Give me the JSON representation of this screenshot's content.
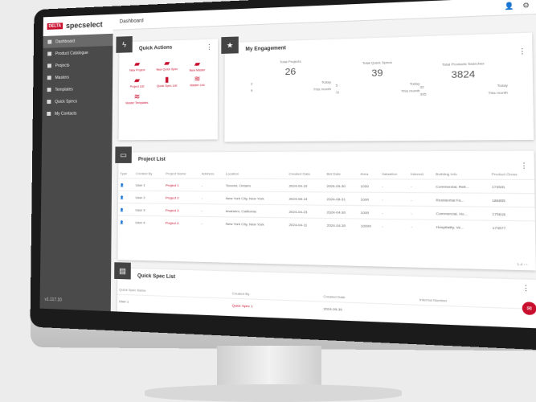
{
  "brand": {
    "badge": "DELTA",
    "name": "specselect"
  },
  "sidebar": {
    "items": [
      {
        "label": "Dashboard"
      },
      {
        "label": "Product Catalogue"
      },
      {
        "label": "Projects"
      },
      {
        "label": "Masters"
      },
      {
        "label": "Templates"
      },
      {
        "label": "Quick Specs"
      },
      {
        "label": "My Contacts"
      }
    ],
    "version": "v1.117.10"
  },
  "header": {
    "title": "Dashboard"
  },
  "quick_actions": {
    "title": "Quick Actions",
    "items": [
      {
        "label": "New Project"
      },
      {
        "label": "New Quick Spec"
      },
      {
        "label": "New Master"
      },
      {
        "label": "Project List"
      },
      {
        "label": "Quick Spec List"
      },
      {
        "label": "Master List"
      },
      {
        "label": "Master Templates"
      }
    ]
  },
  "engagement": {
    "title": "My Engagement",
    "stats": [
      {
        "label": "Total Projects",
        "value": "26",
        "today": "2",
        "today_label": "Today",
        "week": "9",
        "week_label": "This month"
      },
      {
        "label": "Total Quick Specs",
        "value": "39",
        "today": "5",
        "today_label": "Today",
        "week": "11",
        "week_label": "This month"
      },
      {
        "label": "Total Products Searches",
        "value": "3824",
        "today": "32",
        "today_label": "Today",
        "week": "395",
        "week_label": "This month"
      }
    ]
  },
  "project_list": {
    "title": "Project List",
    "columns": [
      "Type",
      "Created By",
      "Project Name",
      "Address",
      "Location",
      "Created Date",
      "Bid Date",
      "Area",
      "Valuation",
      "Interest",
      "Building Info",
      "Product Gross"
    ],
    "rows": [
      [
        "User 1",
        "Project 1",
        "-",
        "Toronto, Ontario",
        "2024-09-19",
        "2024-09-30",
        "1000",
        "-",
        "-",
        "Commercial, Reti...",
        "173531"
      ],
      [
        "User 2",
        "Project 2",
        "-",
        "New York City, New York",
        "2024-08-14",
        "2024-08-31",
        "1000",
        "-",
        "-",
        "Residential Fa...",
        "186855"
      ],
      [
        "User 3",
        "Project 3",
        "-",
        "Anaheim, California",
        "2024-04-23",
        "2024-04-30",
        "1000",
        "-",
        "-",
        "Commercial, Ho...",
        "175616"
      ],
      [
        "User 4",
        "Project 4",
        "-",
        "New York City, New York",
        "2024-04-11",
        "2024-04-30",
        "10000",
        "-",
        "-",
        "Hospitality, Ve...",
        "173577"
      ]
    ],
    "pagination": "1-4"
  },
  "quick_spec_list": {
    "title": "Quick Spec List",
    "columns": [
      "Quick Spec Name",
      "Created By",
      "Created Date",
      "Internal Number"
    ],
    "rows": [
      [
        "User 1",
        "Quick Spec 1",
        "2024-09-30",
        ""
      ]
    ]
  },
  "colors": {
    "accent": "#c8102e",
    "sidebar": "#4a4a4a"
  }
}
